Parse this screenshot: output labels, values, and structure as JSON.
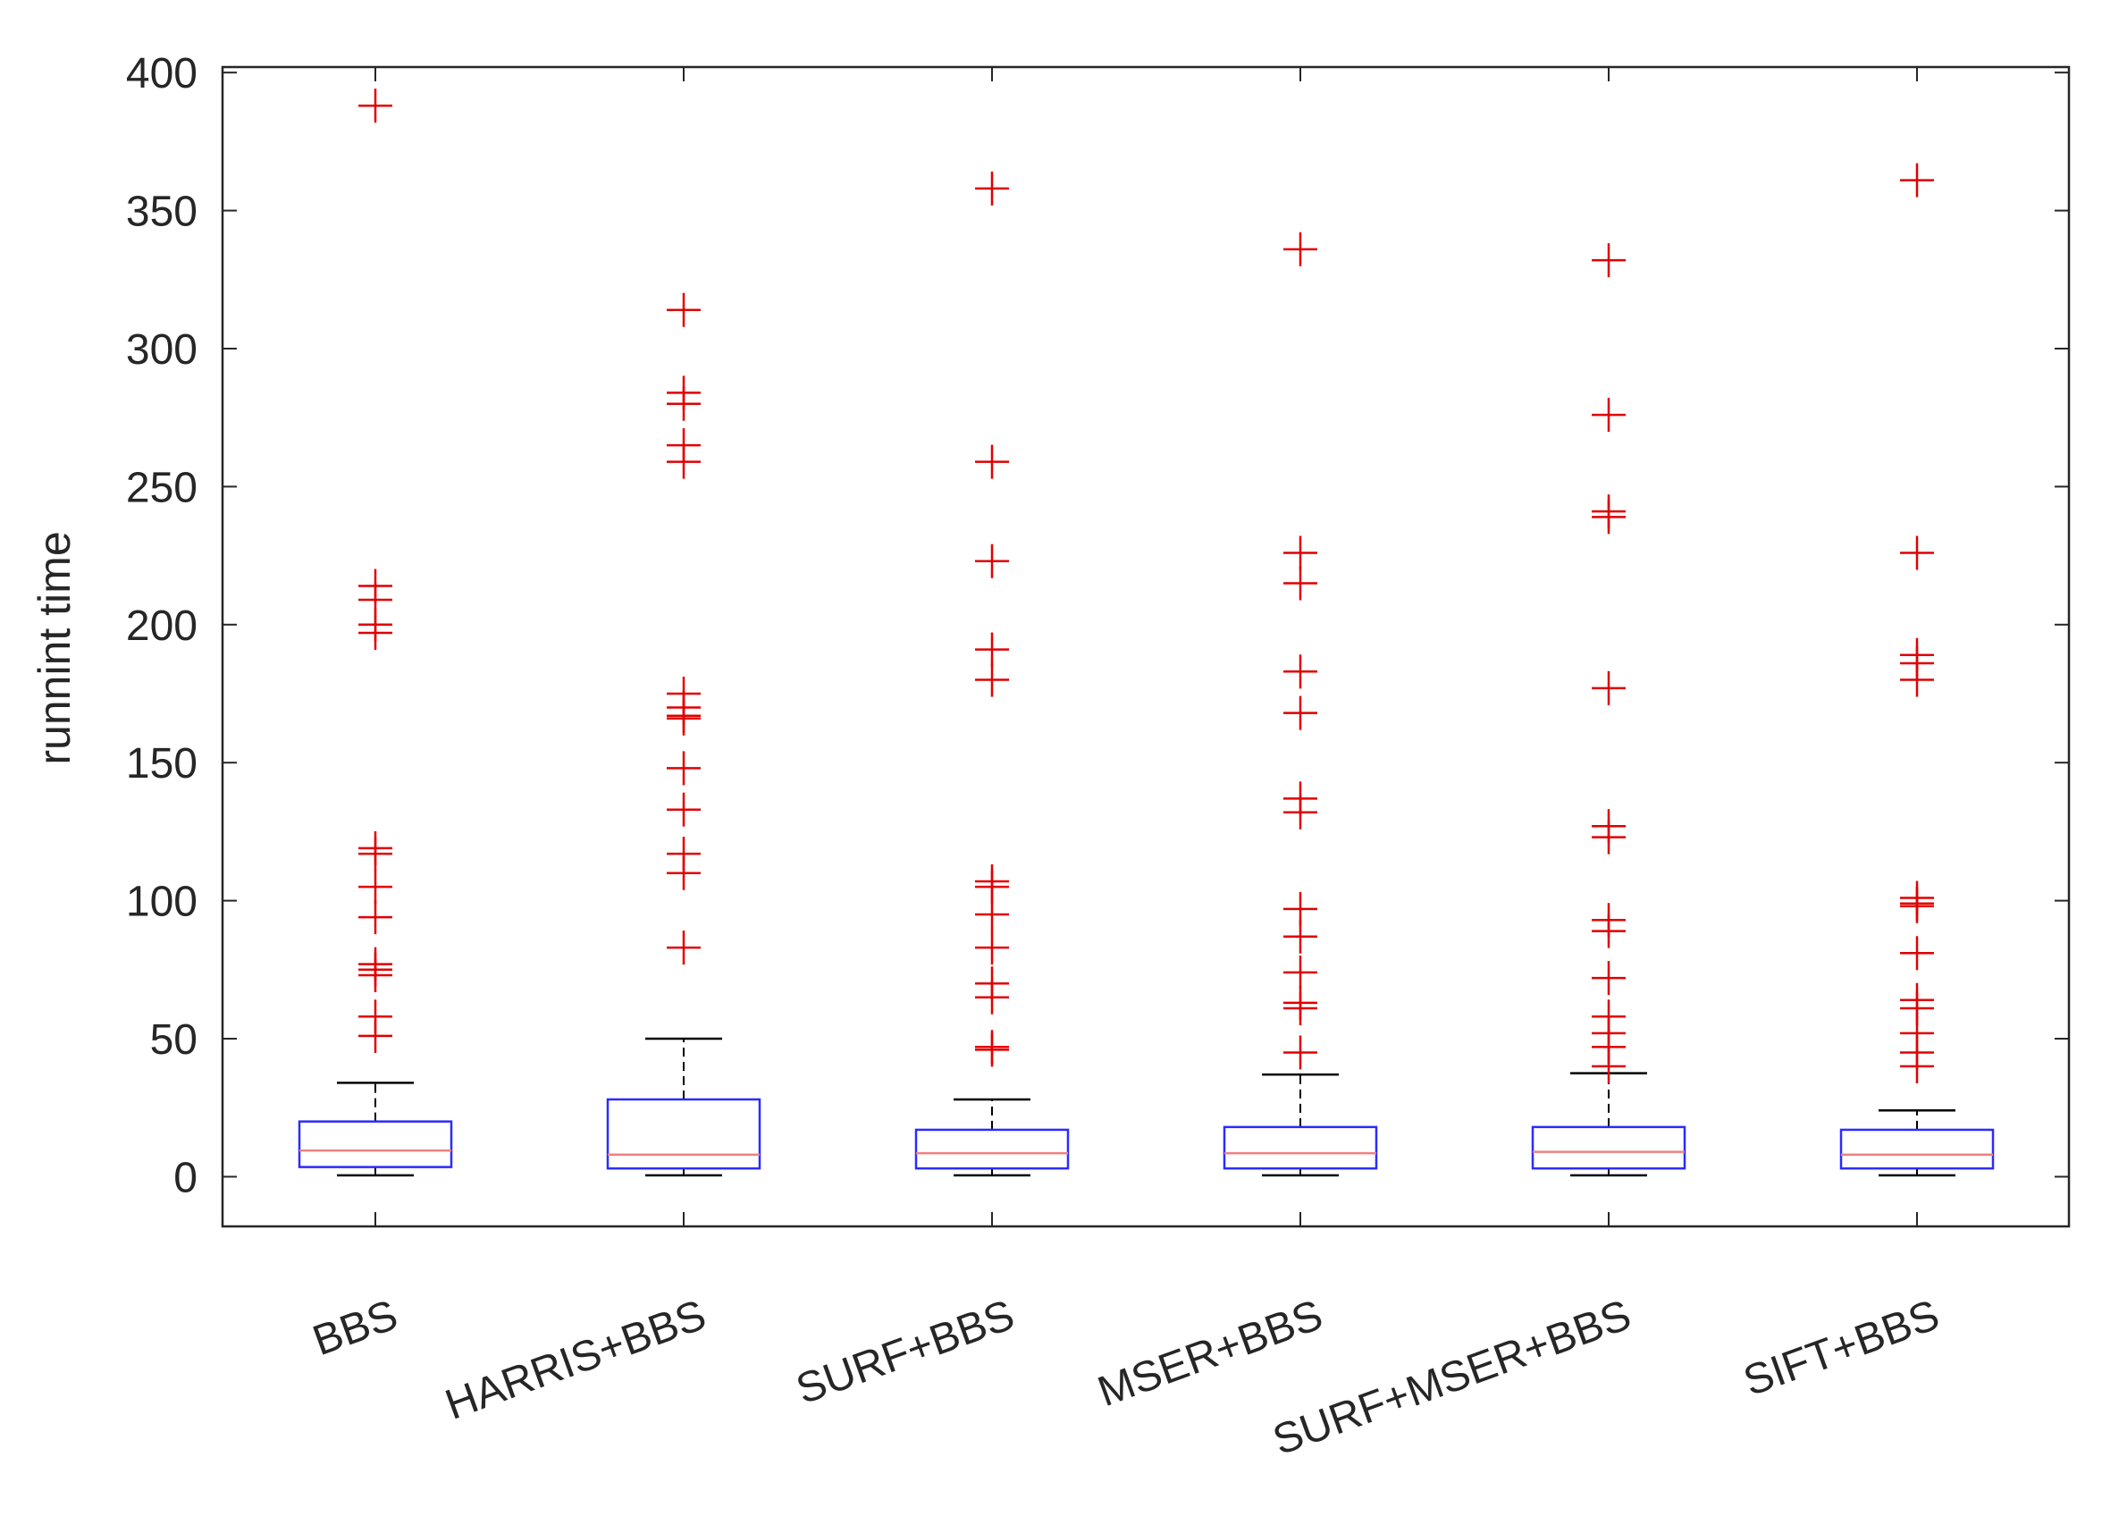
{
  "chart_data": {
    "type": "box",
    "title": "",
    "xlabel": "",
    "ylabel": "runnint time",
    "ylim": [
      -18,
      402
    ],
    "yticks": [
      0,
      50,
      100,
      150,
      200,
      250,
      300,
      350,
      400
    ],
    "grid": false,
    "colors": {
      "box": "#2b2bff",
      "median": "#f08080",
      "whisker": "#000000",
      "outlier": "#e00000",
      "axis": "#262626"
    },
    "categories": [
      "BBS",
      "HARRIS+BBS",
      "SURF+BBS",
      "MSER+BBS",
      "SURF+MSER+BBS",
      "SIFT+BBS"
    ],
    "boxes": [
      {
        "name": "BBS",
        "lower_whisker": 0.5,
        "q1": 3.5,
        "median": 9.5,
        "q3": 20,
        "upper_whisker": 34,
        "outliers": [
          388,
          214,
          209,
          200,
          197,
          119,
          117,
          105,
          94,
          77,
          75,
          73,
          58,
          51
        ]
      },
      {
        "name": "HARRIS+BBS",
        "lower_whisker": 0.5,
        "q1": 3,
        "median": 8,
        "q3": 28,
        "upper_whisker": 50,
        "outliers": [
          314,
          284,
          280,
          265,
          259,
          175,
          170,
          167,
          166,
          148,
          133,
          117,
          110,
          83
        ]
      },
      {
        "name": "SURF+BBS",
        "lower_whisker": 0.5,
        "q1": 3,
        "median": 8.5,
        "q3": 17,
        "upper_whisker": 28,
        "outliers": [
          358,
          259,
          223,
          191,
          180,
          107,
          105,
          95,
          83,
          70,
          65,
          47,
          46
        ]
      },
      {
        "name": "MSER+BBS",
        "lower_whisker": 0.5,
        "q1": 3,
        "median": 8.5,
        "q3": 18,
        "upper_whisker": 37,
        "outliers": [
          336,
          226,
          215,
          183,
          168,
          137,
          132,
          97,
          87,
          74,
          63,
          61,
          45
        ]
      },
      {
        "name": "SURF+MSER+BBS",
        "lower_whisker": 0.5,
        "q1": 3,
        "median": 9,
        "q3": 18,
        "upper_whisker": 37.5,
        "outliers": [
          332,
          276,
          241,
          239,
          177,
          127,
          123,
          93,
          89,
          72,
          58,
          52,
          47,
          40
        ]
      },
      {
        "name": "SIFT+BBS",
        "lower_whisker": 0.5,
        "q1": 3,
        "median": 8,
        "q3": 17,
        "upper_whisker": 24,
        "outliers": [
          361,
          226,
          189,
          186,
          180,
          101,
          99,
          98,
          81,
          64,
          61,
          52,
          45,
          40
        ]
      }
    ]
  }
}
